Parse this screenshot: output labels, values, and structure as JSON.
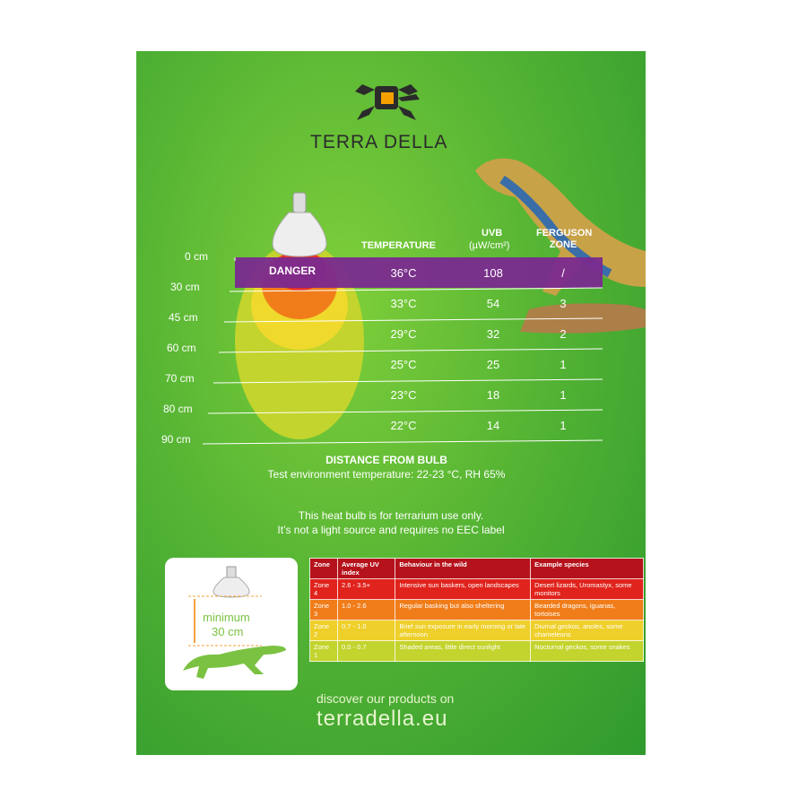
{
  "brand": "TERRA DELLA",
  "chart": {
    "danger": "DANGER",
    "headers": {
      "temperature": "TEMPERATURE",
      "uvb": "UVB",
      "uvb_unit": "(µW/cm²)",
      "zone": "FERGUSON ZONE"
    },
    "distances": [
      "0 cm",
      "30 cm",
      "45 cm",
      "60 cm",
      "70 cm",
      "80 cm",
      "90 cm"
    ],
    "rows": [
      {
        "temperature": "36°C",
        "uvb": 108,
        "zone": "/"
      },
      {
        "temperature": "33°C",
        "uvb": 54,
        "zone": 3
      },
      {
        "temperature": "29°C",
        "uvb": 32,
        "zone": 2
      },
      {
        "temperature": "25°C",
        "uvb": 25,
        "zone": 1
      },
      {
        "temperature": "23°C",
        "uvb": 18,
        "zone": 1
      },
      {
        "temperature": "22°C",
        "uvb": 14,
        "zone": 1
      }
    ],
    "axis_title": "DISTANCE FROM BULB",
    "test_note": "Test environment temperature: 22-23 °C, RH 65%"
  },
  "notice": [
    "This heat bulb is for terrarium use only.",
    "It’s not a light source and requires no EEC label"
  ],
  "minimum": {
    "label": "minimum",
    "value": "30 cm"
  },
  "table": {
    "header": [
      "Zone",
      "Average UV index",
      "Behaviour in the wild",
      "Example species"
    ],
    "rows": [
      [
        "Zone 4",
        "2.6 - 3.5+",
        "Intensive sun baskers, open landscapes",
        "Desert lizards, Uromastyx, some monitors"
      ],
      [
        "Zone 3",
        "1.0 - 2.6",
        "Regular basking but also sheltering",
        "Bearded dragons, iguanas, tortoises"
      ],
      [
        "Zone 2",
        "0.7 - 1.0",
        "Brief sun exposure in early morning or late afternoon",
        "Diurnal geckos, anoles, some chameleons"
      ],
      [
        "Zone 1",
        "0.0 - 0.7",
        "Shaded areas, little direct sunlight",
        "Nocturnal geckos, some snakes"
      ]
    ]
  },
  "footer": {
    "line1": "discover our products on",
    "url": "terradella.eu"
  }
}
